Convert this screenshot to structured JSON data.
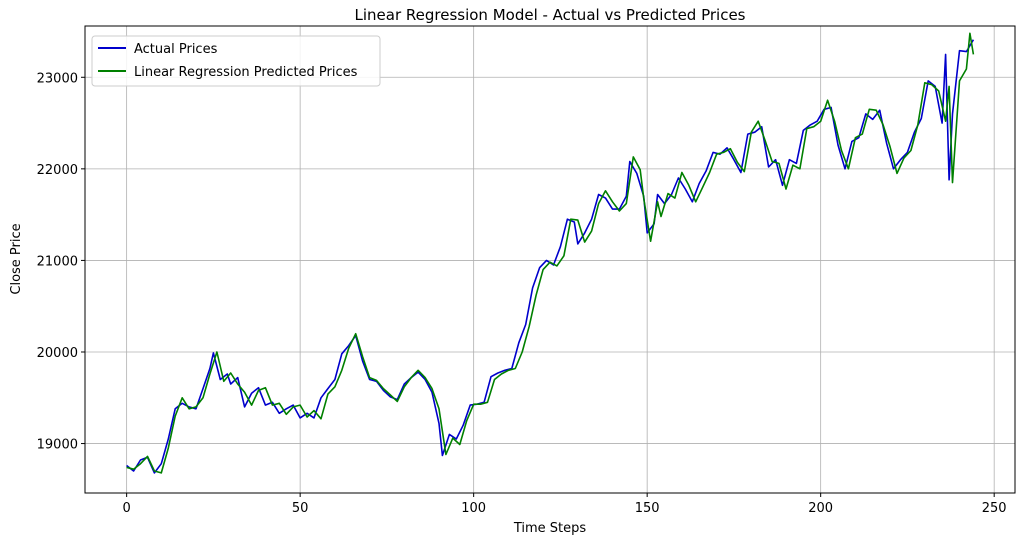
{
  "chart_data": {
    "type": "line",
    "title": "Linear Regression Model - Actual vs Predicted Prices",
    "xlabel": "Time Steps",
    "ylabel": "Close Price",
    "xlim": [
      -12,
      256
    ],
    "ylim": [
      18460,
      23560
    ],
    "xticks": [
      0,
      50,
      100,
      150,
      200,
      250
    ],
    "yticks": [
      19000,
      20000,
      21000,
      22000,
      23000
    ],
    "grid": true,
    "legend_position": "top-left",
    "series": [
      {
        "name": "Actual Prices",
        "color": "#0000cc",
        "points": [
          [
            0,
            18760
          ],
          [
            2,
            18700
          ],
          [
            4,
            18820
          ],
          [
            6,
            18850
          ],
          [
            8,
            18680
          ],
          [
            10,
            18780
          ],
          [
            12,
            19050
          ],
          [
            14,
            19380
          ],
          [
            16,
            19440
          ],
          [
            18,
            19400
          ],
          [
            20,
            19380
          ],
          [
            22,
            19600
          ],
          [
            24,
            19820
          ],
          [
            25,
            19990
          ],
          [
            27,
            19700
          ],
          [
            29,
            19760
          ],
          [
            30,
            19650
          ],
          [
            32,
            19720
          ],
          [
            34,
            19400
          ],
          [
            36,
            19550
          ],
          [
            38,
            19610
          ],
          [
            40,
            19420
          ],
          [
            42,
            19450
          ],
          [
            44,
            19330
          ],
          [
            46,
            19380
          ],
          [
            48,
            19420
          ],
          [
            50,
            19280
          ],
          [
            52,
            19330
          ],
          [
            54,
            19280
          ],
          [
            56,
            19500
          ],
          [
            58,
            19600
          ],
          [
            60,
            19700
          ],
          [
            62,
            19980
          ],
          [
            64,
            20070
          ],
          [
            66,
            20180
          ],
          [
            68,
            19900
          ],
          [
            70,
            19700
          ],
          [
            72,
            19680
          ],
          [
            74,
            19580
          ],
          [
            76,
            19510
          ],
          [
            78,
            19480
          ],
          [
            80,
            19650
          ],
          [
            82,
            19720
          ],
          [
            84,
            19780
          ],
          [
            86,
            19700
          ],
          [
            88,
            19560
          ],
          [
            90,
            19220
          ],
          [
            91,
            18870
          ],
          [
            93,
            19100
          ],
          [
            95,
            19050
          ],
          [
            97,
            19200
          ],
          [
            99,
            19420
          ],
          [
            101,
            19430
          ],
          [
            103,
            19450
          ],
          [
            105,
            19730
          ],
          [
            107,
            19770
          ],
          [
            109,
            19800
          ],
          [
            111,
            19820
          ],
          [
            113,
            20100
          ],
          [
            115,
            20300
          ],
          [
            117,
            20700
          ],
          [
            119,
            20920
          ],
          [
            121,
            21000
          ],
          [
            123,
            20950
          ],
          [
            125,
            21150
          ],
          [
            127,
            21450
          ],
          [
            129,
            21420
          ],
          [
            130,
            21180
          ],
          [
            132,
            21300
          ],
          [
            134,
            21450
          ],
          [
            136,
            21720
          ],
          [
            138,
            21680
          ],
          [
            140,
            21560
          ],
          [
            142,
            21560
          ],
          [
            144,
            21700
          ],
          [
            145,
            22080
          ],
          [
            147,
            21950
          ],
          [
            149,
            21700
          ],
          [
            150,
            21300
          ],
          [
            152,
            21400
          ],
          [
            153,
            21720
          ],
          [
            155,
            21620
          ],
          [
            157,
            21720
          ],
          [
            159,
            21900
          ],
          [
            161,
            21780
          ],
          [
            163,
            21640
          ],
          [
            165,
            21840
          ],
          [
            167,
            21980
          ],
          [
            169,
            22180
          ],
          [
            171,
            22160
          ],
          [
            173,
            22230
          ],
          [
            175,
            22100
          ],
          [
            177,
            21960
          ],
          [
            179,
            22380
          ],
          [
            181,
            22400
          ],
          [
            183,
            22460
          ],
          [
            185,
            22020
          ],
          [
            187,
            22100
          ],
          [
            189,
            21820
          ],
          [
            191,
            22100
          ],
          [
            193,
            22060
          ],
          [
            195,
            22420
          ],
          [
            197,
            22480
          ],
          [
            199,
            22520
          ],
          [
            201,
            22650
          ],
          [
            203,
            22670
          ],
          [
            205,
            22260
          ],
          [
            207,
            22000
          ],
          [
            209,
            22300
          ],
          [
            211,
            22340
          ],
          [
            213,
            22600
          ],
          [
            215,
            22540
          ],
          [
            217,
            22640
          ],
          [
            219,
            22280
          ],
          [
            221,
            22000
          ],
          [
            223,
            22100
          ],
          [
            225,
            22180
          ],
          [
            227,
            22400
          ],
          [
            229,
            22550
          ],
          [
            231,
            22960
          ],
          [
            233,
            22900
          ],
          [
            235,
            22500
          ],
          [
            236,
            23250
          ],
          [
            237,
            21880
          ],
          [
            238,
            22600
          ],
          [
            240,
            23290
          ],
          [
            242,
            23280
          ],
          [
            244,
            23410
          ]
        ]
      },
      {
        "name": "Linear Regression Predicted Prices",
        "color": "#008000",
        "points": [
          [
            0,
            18740
          ],
          [
            2,
            18720
          ],
          [
            4,
            18780
          ],
          [
            6,
            18860
          ],
          [
            8,
            18700
          ],
          [
            10,
            18680
          ],
          [
            12,
            18950
          ],
          [
            14,
            19300
          ],
          [
            16,
            19500
          ],
          [
            18,
            19380
          ],
          [
            20,
            19400
          ],
          [
            22,
            19500
          ],
          [
            24,
            19760
          ],
          [
            26,
            20000
          ],
          [
            28,
            19680
          ],
          [
            30,
            19770
          ],
          [
            32,
            19650
          ],
          [
            34,
            19560
          ],
          [
            36,
            19420
          ],
          [
            38,
            19580
          ],
          [
            40,
            19610
          ],
          [
            42,
            19420
          ],
          [
            44,
            19440
          ],
          [
            46,
            19320
          ],
          [
            48,
            19400
          ],
          [
            50,
            19420
          ],
          [
            52,
            19290
          ],
          [
            54,
            19360
          ],
          [
            56,
            19270
          ],
          [
            58,
            19540
          ],
          [
            60,
            19620
          ],
          [
            62,
            19800
          ],
          [
            64,
            20040
          ],
          [
            66,
            20200
          ],
          [
            68,
            19950
          ],
          [
            70,
            19720
          ],
          [
            72,
            19690
          ],
          [
            74,
            19600
          ],
          [
            76,
            19530
          ],
          [
            78,
            19460
          ],
          [
            80,
            19620
          ],
          [
            82,
            19720
          ],
          [
            84,
            19800
          ],
          [
            86,
            19720
          ],
          [
            88,
            19600
          ],
          [
            90,
            19380
          ],
          [
            92,
            18880
          ],
          [
            94,
            19060
          ],
          [
            96,
            18990
          ],
          [
            98,
            19250
          ],
          [
            100,
            19430
          ],
          [
            102,
            19430
          ],
          [
            104,
            19450
          ],
          [
            106,
            19700
          ],
          [
            108,
            19760
          ],
          [
            110,
            19800
          ],
          [
            112,
            19820
          ],
          [
            114,
            20000
          ],
          [
            116,
            20280
          ],
          [
            118,
            20620
          ],
          [
            120,
            20900
          ],
          [
            122,
            20980
          ],
          [
            124,
            20940
          ],
          [
            126,
            21050
          ],
          [
            128,
            21450
          ],
          [
            130,
            21440
          ],
          [
            132,
            21200
          ],
          [
            134,
            21320
          ],
          [
            136,
            21620
          ],
          [
            138,
            21760
          ],
          [
            140,
            21640
          ],
          [
            142,
            21540
          ],
          [
            144,
            21620
          ],
          [
            146,
            22130
          ],
          [
            148,
            21990
          ],
          [
            149,
            21680
          ],
          [
            151,
            21210
          ],
          [
            153,
            21640
          ],
          [
            154,
            21480
          ],
          [
            156,
            21730
          ],
          [
            158,
            21680
          ],
          [
            160,
            21960
          ],
          [
            162,
            21820
          ],
          [
            164,
            21640
          ],
          [
            166,
            21800
          ],
          [
            168,
            21960
          ],
          [
            170,
            22160
          ],
          [
            172,
            22180
          ],
          [
            174,
            22220
          ],
          [
            176,
            22070
          ],
          [
            178,
            21970
          ],
          [
            180,
            22400
          ],
          [
            182,
            22520
          ],
          [
            184,
            22310
          ],
          [
            186,
            22080
          ],
          [
            188,
            22060
          ],
          [
            190,
            21780
          ],
          [
            192,
            22040
          ],
          [
            194,
            22000
          ],
          [
            196,
            22440
          ],
          [
            198,
            22460
          ],
          [
            200,
            22520
          ],
          [
            202,
            22750
          ],
          [
            204,
            22520
          ],
          [
            206,
            22200
          ],
          [
            208,
            22000
          ],
          [
            210,
            22340
          ],
          [
            212,
            22380
          ],
          [
            214,
            22650
          ],
          [
            216,
            22640
          ],
          [
            218,
            22480
          ],
          [
            220,
            22240
          ],
          [
            222,
            21950
          ],
          [
            224,
            22120
          ],
          [
            226,
            22200
          ],
          [
            228,
            22480
          ],
          [
            230,
            22940
          ],
          [
            232,
            22920
          ],
          [
            234,
            22850
          ],
          [
            236,
            22520
          ],
          [
            237,
            22900
          ],
          [
            238,
            21850
          ],
          [
            240,
            22960
          ],
          [
            242,
            23090
          ],
          [
            243,
            23480
          ],
          [
            244,
            23250
          ]
        ]
      }
    ]
  }
}
